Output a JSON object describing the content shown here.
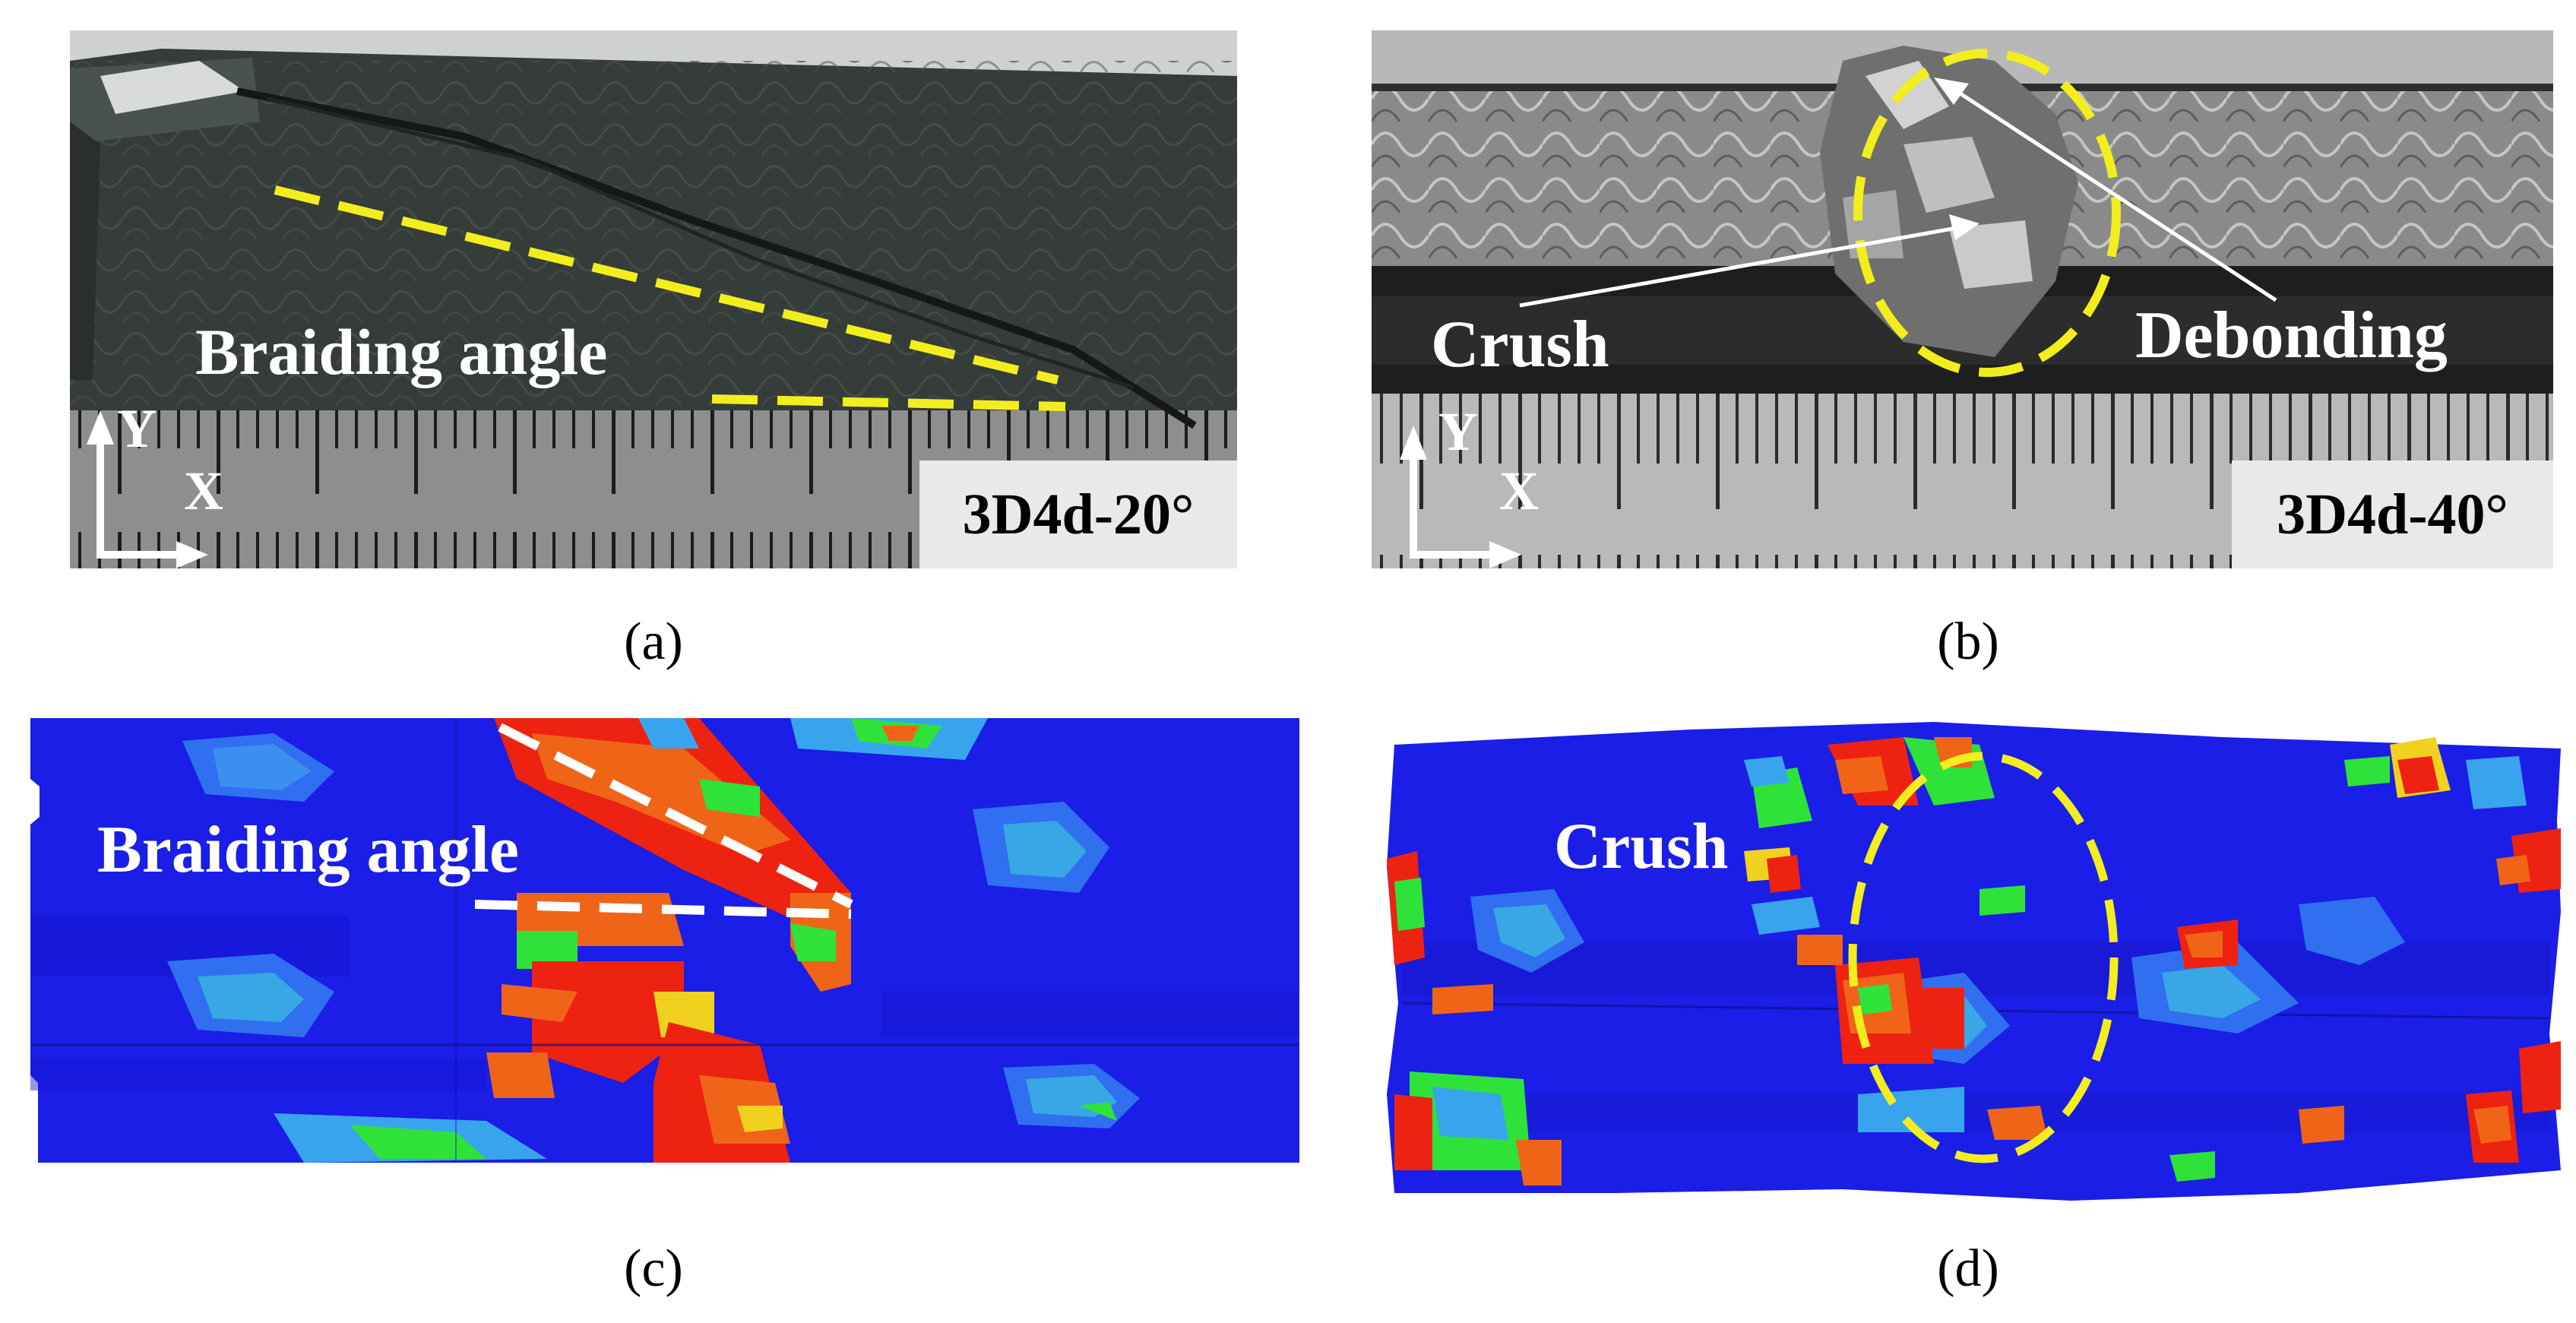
{
  "panels": {
    "a": {
      "caption_letter": "a",
      "overlay_label": "Braiding angle",
      "specimen_tag": "3D4d-20°",
      "axis_y": "Y",
      "axis_x": "X"
    },
    "b": {
      "caption_letter": "b",
      "label_crush": "Crush",
      "label_debonding": "Debonding",
      "specimen_tag": "3D4d-40°",
      "axis_y": "Y",
      "axis_x": "X"
    },
    "c": {
      "caption_letter": "c",
      "overlay_label": "Braiding angle"
    },
    "d": {
      "caption_letter": "d",
      "label_crush": "Crush"
    }
  },
  "colors": {
    "annotation_yellow": "#f2ee1e",
    "annotation_white": "#ffffff",
    "sim_blue": "#1a1ee6",
    "sim_red": "#ee2211",
    "sim_orange": "#f06418",
    "sim_green": "#2ee23a",
    "sim_cyan": "#38a4ee"
  }
}
